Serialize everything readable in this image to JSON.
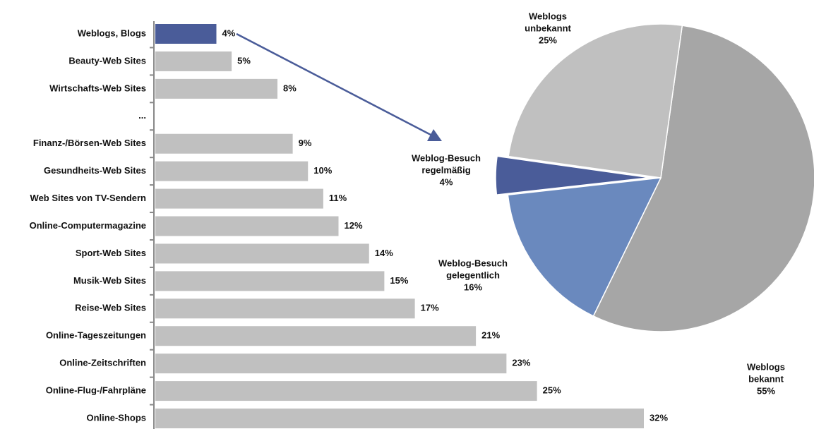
{
  "chart_data": [
    {
      "type": "bar",
      "orientation": "horizontal",
      "categories": [
        "Weblogs, Blogs",
        "Beauty-Web Sites",
        "Wirtschafts-Web Sites",
        "...",
        "Finanz-/Börsen-Web Sites",
        "Gesundheits-Web Sites",
        "Web Sites von TV-Sendern",
        "Online-Computermagazine",
        "Sport-Web Sites",
        "Musik-Web Sites",
        "Reise-Web Sites",
        "Online-Tageszeitungen",
        "Online-Zeitschriften",
        "Online-Flug-/Fahrpläne",
        "Online-Shops"
      ],
      "values": [
        4,
        5,
        8,
        null,
        9,
        10,
        11,
        12,
        14,
        15,
        17,
        21,
        23,
        25,
        32
      ],
      "value_labels": [
        "4%",
        "5%",
        "8%",
        null,
        "9%",
        "10%",
        "11%",
        "12%",
        "14%",
        "15%",
        "17%",
        "21%",
        "23%",
        "25%",
        "32%"
      ],
      "colors": [
        "#4a5c99",
        "#c0c0c0",
        "#c0c0c0",
        null,
        "#c0c0c0",
        "#c0c0c0",
        "#c0c0c0",
        "#c0c0c0",
        "#c0c0c0",
        "#c0c0c0",
        "#c0c0c0",
        "#c0c0c0",
        "#c0c0c0",
        "#c0c0c0",
        "#c0c0c0"
      ]
    },
    {
      "type": "pie",
      "labels": [
        "Weblogs bekannt",
        "Weblog-Besuch\ngelegentlich",
        "Weblog-Besuch\nregelmäßig",
        "Weblogs\nunbekannt"
      ],
      "values": [
        55,
        16,
        4,
        25
      ],
      "value_labels": [
        "55%",
        "16%",
        "4%",
        "25%"
      ],
      "colors": [
        "#a6a6a6",
        "#6a89be",
        "#4a5c99",
        "#c0c0c0"
      ]
    }
  ]
}
